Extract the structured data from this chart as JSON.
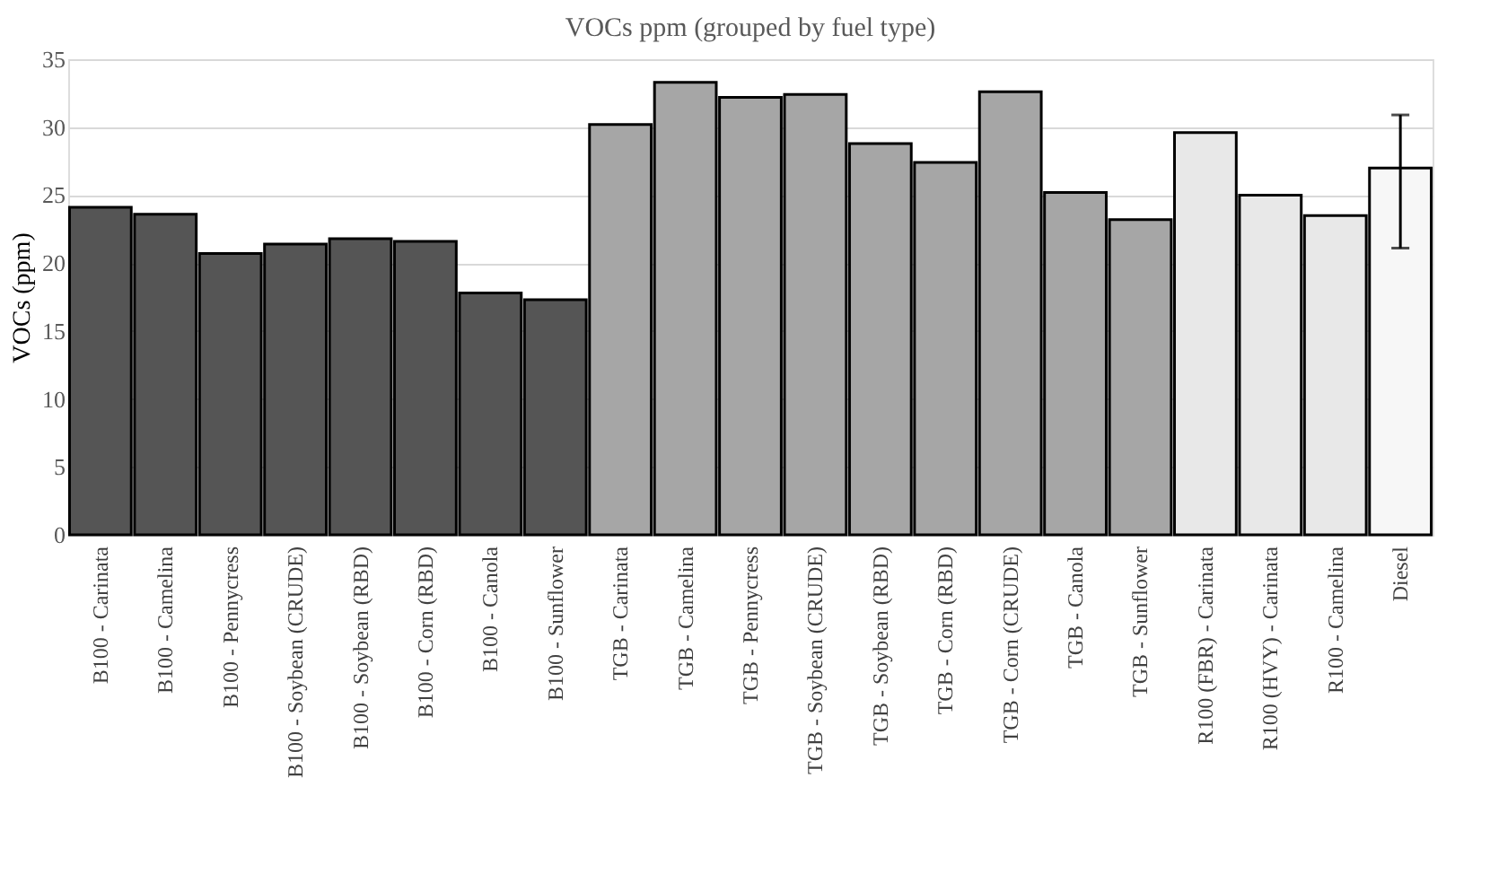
{
  "chart_data": {
    "type": "bar",
    "title": "VOCs ppm (grouped by fuel type)",
    "ylabel": "VOCs (ppm)",
    "categories": [
      "B100 - Carinata",
      "B100 - Camelina",
      "B100 - Pennycress",
      "B100 - Soybean (CRUDE)",
      "B100 - Soybean (RBD)",
      "B100 - Corn (RBD)",
      "B100 - Canola",
      "B100 - Sunflower",
      "TGB - Carinata",
      "TGB - Camelina",
      "TGB - Pennycress",
      "TGB - Soybean (CRUDE)",
      "TGB - Soybean (RBD)",
      "TGB - Corn (RBD)",
      "TGB - Corn (CRUDE)",
      "TGB - Canola",
      "TGB - Sunflower",
      "R100 (FBR) - Carinata",
      "R100 (HVY) - Carinata",
      "R100 - Camelina",
      "Diesel"
    ],
    "values": [
      24.1,
      23.6,
      20.7,
      21.4,
      21.8,
      21.6,
      17.8,
      17.3,
      30.2,
      33.3,
      32.2,
      32.4,
      28.8,
      27.4,
      32.6,
      25.2,
      23.2,
      29.6,
      25.0,
      23.5,
      27.0
    ],
    "colors": [
      "#555555",
      "#555555",
      "#555555",
      "#555555",
      "#555555",
      "#555555",
      "#555555",
      "#555555",
      "#a6a6a6",
      "#a6a6a6",
      "#a6a6a6",
      "#a6a6a6",
      "#a6a6a6",
      "#a6a6a6",
      "#a6a6a6",
      "#a6a6a6",
      "#a6a6a6",
      "#e8e8e8",
      "#e8e8e8",
      "#e8e8e8",
      "#f7f7f7"
    ],
    "errors": [
      null,
      null,
      null,
      null,
      null,
      null,
      null,
      null,
      null,
      null,
      null,
      null,
      null,
      null,
      null,
      null,
      null,
      null,
      null,
      null,
      [
        21.1,
        30.9
      ]
    ],
    "ylim": [
      0,
      35
    ],
    "yticks": [
      0,
      5,
      10,
      15,
      20,
      25,
      30,
      35
    ],
    "grid": "y"
  }
}
